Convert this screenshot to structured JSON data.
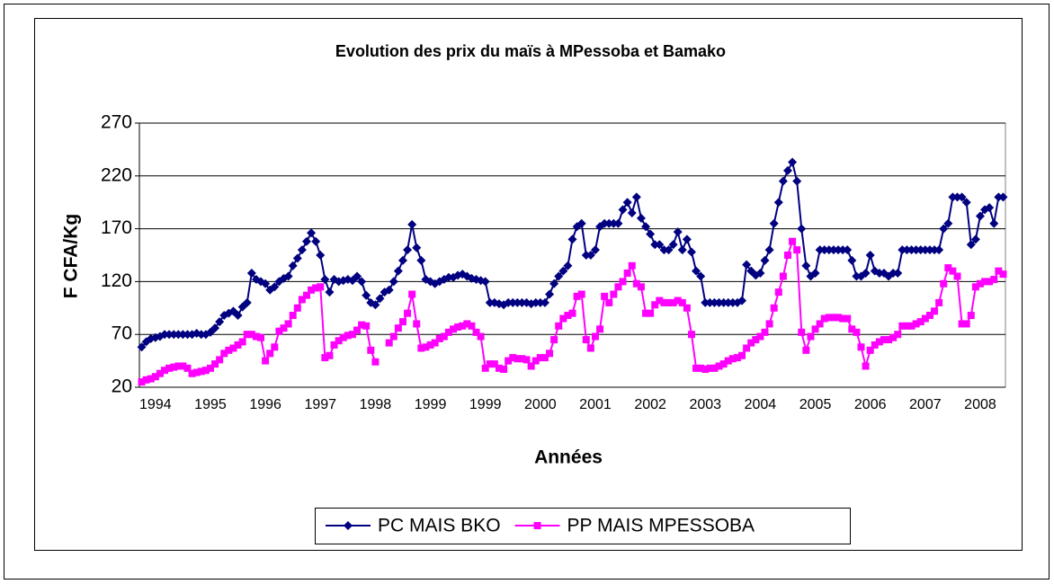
{
  "chart_data": {
    "type": "line",
    "title": "Evolution des prix du maïs à MPessoba et Bamako",
    "x_label": "Années",
    "y_label": "F CFA/Kg",
    "categories": [
      null,
      null,
      null,
      "1994",
      null,
      null,
      null,
      null,
      null,
      null,
      null,
      null,
      null,
      null,
      null,
      "1995",
      null,
      null,
      null,
      null,
      null,
      null,
      null,
      null,
      null,
      null,
      null,
      "1996",
      null,
      null,
      null,
      null,
      null,
      null,
      null,
      null,
      null,
      null,
      null,
      "1997",
      null,
      null,
      null,
      null,
      null,
      null,
      null,
      null,
      null,
      null,
      null,
      "1998",
      null,
      null,
      null,
      null,
      null,
      null,
      null,
      null,
      null,
      null,
      null,
      "1999",
      null,
      null,
      null,
      null,
      null,
      null,
      null,
      null,
      null,
      null,
      null,
      "1999",
      null,
      null,
      null,
      null,
      null,
      null,
      null,
      null,
      null,
      null,
      null,
      "2000",
      null,
      null,
      null,
      null,
      null,
      null,
      null,
      null,
      null,
      null,
      null,
      "2001",
      null,
      null,
      null,
      null,
      null,
      null,
      null,
      null,
      null,
      null,
      null,
      "2002",
      null,
      null,
      null,
      null,
      null,
      null,
      null,
      null,
      null,
      null,
      null,
      "2003",
      null,
      null,
      null,
      null,
      null,
      null,
      null,
      null,
      null,
      null,
      null,
      "2004",
      null,
      null,
      null,
      null,
      null,
      null,
      null,
      null,
      null,
      null,
      null,
      "2005",
      null,
      null,
      null,
      null,
      null,
      null,
      null,
      null,
      null,
      null,
      null,
      "2006",
      null,
      null,
      null,
      null,
      null,
      null,
      null,
      null,
      null,
      null,
      null,
      "2007",
      null,
      null,
      null,
      null,
      null,
      null,
      null,
      null,
      null,
      null,
      null,
      "2008",
      null,
      null,
      null,
      null,
      null
    ],
    "series": [
      {
        "name": "PC MAIS BKO",
        "color": "#000080",
        "marker": "diamond",
        "values": [
          58,
          63,
          66,
          67,
          68,
          70,
          70,
          70,
          70,
          70,
          70,
          70,
          71,
          70,
          70,
          72,
          76,
          82,
          88,
          90,
          92,
          88,
          96,
          100,
          128,
          122,
          120,
          118,
          112,
          115,
          120,
          123,
          125,
          135,
          142,
          150,
          158,
          166,
          158,
          145,
          122,
          110,
          122,
          120,
          121,
          122,
          121,
          125,
          120,
          107,
          100,
          98,
          104,
          110,
          112,
          120,
          130,
          140,
          150,
          174,
          152,
          140,
          122,
          120,
          118,
          120,
          122,
          124,
          124,
          126,
          127,
          125,
          123,
          122,
          121,
          120,
          100,
          100,
          99,
          98,
          100,
          100,
          100,
          100,
          100,
          99,
          100,
          100,
          100,
          108,
          118,
          125,
          130,
          135,
          160,
          172,
          175,
          145,
          145,
          150,
          172,
          175,
          175,
          175,
          175,
          188,
          195,
          185,
          200,
          180,
          172,
          165,
          155,
          155,
          150,
          150,
          155,
          167,
          150,
          160,
          148,
          130,
          125,
          100,
          100,
          100,
          100,
          100,
          100,
          100,
          100,
          102,
          136,
          130,
          126,
          128,
          140,
          150,
          175,
          195,
          215,
          225,
          233,
          215,
          170,
          135,
          125,
          128,
          150,
          150,
          150,
          150,
          150,
          150,
          150,
          140,
          125,
          125,
          128,
          145,
          130,
          128,
          128,
          125,
          128,
          128,
          150,
          150,
          150,
          150,
          150,
          150,
          150,
          150,
          150,
          170,
          175,
          200,
          200,
          200,
          195,
          155,
          160,
          182,
          188,
          190,
          175,
          200,
          200
        ]
      },
      {
        "name": "PP MAIS MPESSOBA",
        "color": "#ff00ff",
        "marker": "square",
        "values": [
          25,
          27,
          28,
          30,
          33,
          36,
          38,
          39,
          40,
          40,
          38,
          33,
          34,
          35,
          36,
          38,
          42,
          46,
          52,
          55,
          57,
          60,
          63,
          70,
          70,
          68,
          67,
          45,
          52,
          58,
          73,
          76,
          80,
          88,
          95,
          103,
          107,
          112,
          114,
          115,
          48,
          50,
          60,
          64,
          67,
          69,
          70,
          74,
          79,
          78,
          55,
          44,
          null,
          null,
          62,
          68,
          76,
          82,
          90,
          108,
          80,
          57,
          58,
          60,
          62,
          66,
          68,
          72,
          75,
          77,
          78,
          80,
          78,
          72,
          68,
          38,
          42,
          42,
          38,
          37,
          45,
          48,
          47,
          47,
          46,
          40,
          45,
          48,
          48,
          52,
          65,
          78,
          85,
          88,
          90,
          106,
          108,
          65,
          57,
          68,
          75,
          106,
          100,
          108,
          115,
          120,
          128,
          135,
          118,
          115,
          90,
          90,
          98,
          102,
          100,
          100,
          100,
          102,
          100,
          95,
          70,
          38,
          38,
          37,
          38,
          38,
          40,
          42,
          45,
          47,
          48,
          50,
          57,
          62,
          65,
          68,
          72,
          80,
          95,
          110,
          125,
          145,
          158,
          150,
          72,
          55,
          68,
          75,
          80,
          85,
          86,
          86,
          86,
          85,
          85,
          75,
          72,
          58,
          40,
          55,
          60,
          63,
          65,
          65,
          67,
          70,
          78,
          78,
          78,
          80,
          82,
          85,
          88,
          92,
          100,
          118,
          133,
          130,
          125,
          80,
          80,
          88,
          115,
          118,
          120,
          120,
          122,
          130,
          127
        ]
      }
    ],
    "ylim": [
      20,
      270
    ],
    "yticks": [
      20,
      70,
      120,
      170,
      220,
      270
    ],
    "grid": true,
    "legend": "bottom"
  }
}
